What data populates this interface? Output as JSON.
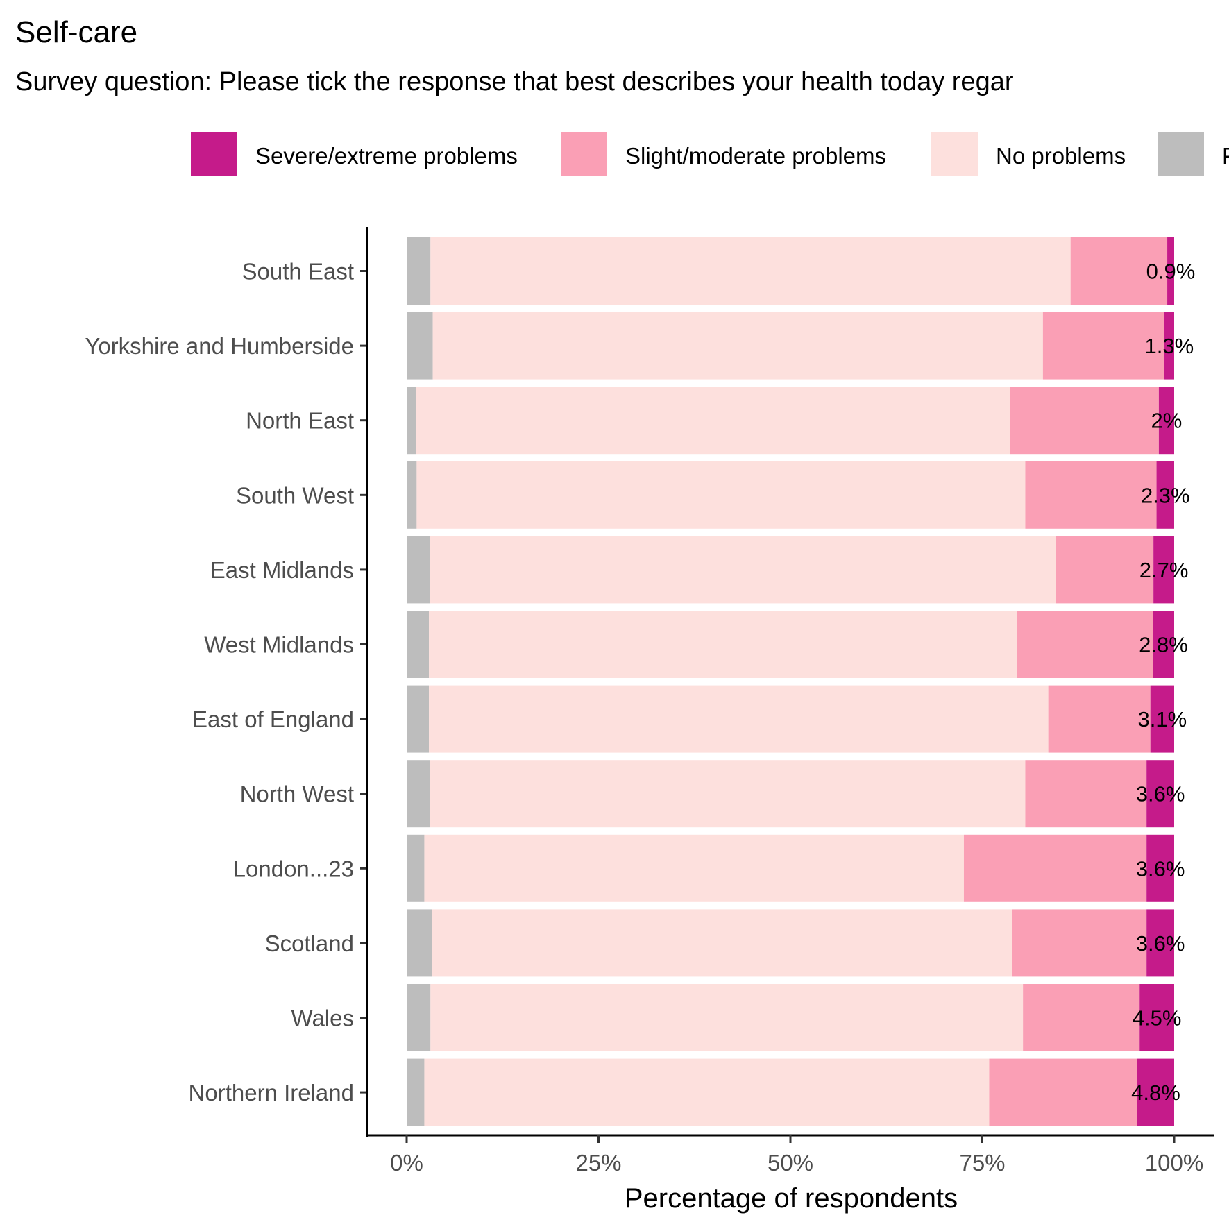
{
  "chart_data": {
    "type": "bar",
    "orientation": "horizontal",
    "stacked": true,
    "title": "Self-care",
    "subtitle": "Survey question: Please tick the response that best describes your health today regar",
    "xlabel": "Percentage of respondents",
    "ylabel": "",
    "xlim": [
      0,
      100
    ],
    "xticks": [
      "0%",
      "25%",
      "50%",
      "75%",
      "100%"
    ],
    "xtick_values": [
      0,
      25,
      50,
      75,
      100
    ],
    "legend_position": "top",
    "legend": [
      {
        "label": "Severe/extreme problems",
        "color": "#c51b8a"
      },
      {
        "label": "Slight/moderate problems",
        "color": "#fa9fb5"
      },
      {
        "label": "No problems",
        "color": "#fde0dd"
      },
      {
        "label": "P",
        "color": "#bdbdbd"
      }
    ],
    "categories": [
      "South East",
      "Yorkshire and Humberside",
      "North East",
      "South West",
      "East Midlands",
      "West Midlands",
      "East of England",
      "North West",
      "London...23",
      "Scotland",
      "Wales",
      "Northern Ireland"
    ],
    "series": [
      {
        "key": "grey",
        "color": "#bdbdbd",
        "values": [
          3.1,
          3.4,
          1.2,
          1.3,
          3.0,
          2.9,
          2.9,
          3.0,
          2.3,
          3.3,
          3.1,
          2.3
        ]
      },
      {
        "key": "none",
        "color": "#fde0dd",
        "values": [
          83.4,
          79.5,
          77.4,
          79.3,
          81.6,
          76.6,
          80.7,
          77.6,
          70.3,
          75.6,
          77.2,
          73.6
        ]
      },
      {
        "key": "slight",
        "color": "#fa9fb5",
        "values": [
          12.6,
          15.8,
          19.4,
          17.1,
          12.7,
          17.7,
          13.3,
          15.8,
          23.8,
          17.5,
          15.2,
          19.3
        ]
      },
      {
        "key": "severe",
        "color": "#c51b8a",
        "values": [
          0.9,
          1.3,
          2.0,
          2.3,
          2.7,
          2.8,
          3.1,
          3.6,
          3.6,
          3.6,
          4.5,
          4.8
        ]
      }
    ],
    "data_labels": [
      "0.9%",
      "1.3%",
      "2%",
      "2.3%",
      "2.7%",
      "2.8%",
      "3.1%",
      "3.6%",
      "3.6%",
      "3.6%",
      "4.5%",
      "4.8%"
    ],
    "grid": false
  }
}
